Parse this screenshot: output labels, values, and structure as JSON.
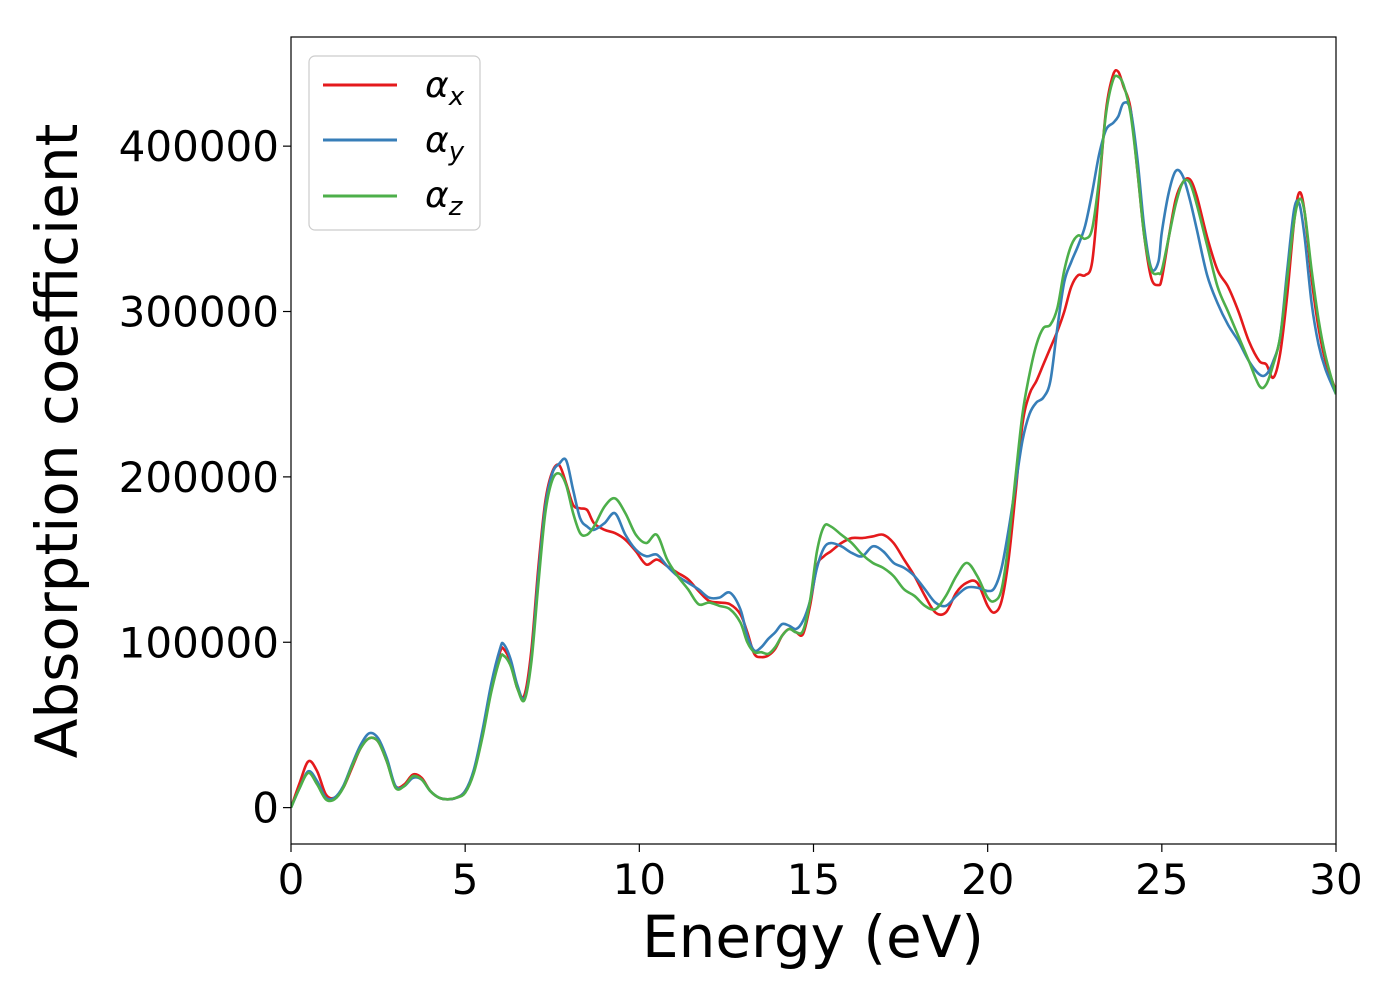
{
  "chart_data": {
    "type": "line",
    "xlabel": "Energy (eV)",
    "ylabel": "Absorption coefficient",
    "xlim": [
      0,
      30
    ],
    "ylim": [
      -22000,
      466000
    ],
    "xticks": [
      0,
      5,
      10,
      15,
      20,
      25,
      30
    ],
    "xtick_labels": [
      "0",
      "5",
      "10",
      "15",
      "20",
      "25",
      "30"
    ],
    "yticks": [
      0,
      100000,
      200000,
      300000,
      400000
    ],
    "ytick_labels": [
      "0",
      "100000",
      "200000",
      "300000",
      "400000"
    ],
    "grid": false,
    "legend_position": "top-left",
    "series": [
      {
        "name": "α",
        "subscript": "x",
        "color": "#e41a1c",
        "x": [
          0,
          0.25,
          0.5,
          0.75,
          1.0,
          1.25,
          1.5,
          1.75,
          2.0,
          2.25,
          2.5,
          2.75,
          3.0,
          3.25,
          3.5,
          3.75,
          4.0,
          4.25,
          4.5,
          4.75,
          5.0,
          5.25,
          5.5,
          5.75,
          6.0,
          6.1,
          6.3,
          6.5,
          6.7,
          6.9,
          7.1,
          7.3,
          7.5,
          7.7,
          7.9,
          8.1,
          8.3,
          8.5,
          8.7,
          9.0,
          9.3,
          9.6,
          9.9,
          10.2,
          10.5,
          10.8,
          11.1,
          11.4,
          11.7,
          12.0,
          12.3,
          12.6,
          12.9,
          13.1,
          13.3,
          13.5,
          13.7,
          13.9,
          14.1,
          14.3,
          14.5,
          14.7,
          14.9,
          15.1,
          15.3,
          15.5,
          15.8,
          16.1,
          16.4,
          16.7,
          17.0,
          17.3,
          17.6,
          17.9,
          18.2,
          18.5,
          18.8,
          19.1,
          19.4,
          19.7,
          20.0,
          20.2,
          20.4,
          20.6,
          20.8,
          21.0,
          21.2,
          21.4,
          21.6,
          21.8,
          22.0,
          22.2,
          22.4,
          22.6,
          22.8,
          23.0,
          23.2,
          23.4,
          23.6,
          23.75,
          23.9,
          24.1,
          24.3,
          24.5,
          24.7,
          24.9,
          25.0,
          25.2,
          25.4,
          25.6,
          25.8,
          26.0,
          26.3,
          26.6,
          26.9,
          27.2,
          27.5,
          27.8,
          28.0,
          28.2,
          28.4,
          28.6,
          28.8,
          28.95,
          29.1,
          29.3,
          29.5,
          29.7,
          30.0
        ],
        "y": [
          0,
          15000,
          28000,
          22000,
          8000,
          6000,
          12000,
          24000,
          36000,
          42000,
          40000,
          28000,
          13000,
          14000,
          20000,
          18000,
          10000,
          6000,
          5000,
          6000,
          10000,
          22000,
          45000,
          72000,
          94000,
          96000,
          88000,
          72000,
          68000,
          95000,
          145000,
          185000,
          203000,
          207000,
          196000,
          183000,
          181000,
          180000,
          172000,
          168000,
          166000,
          162000,
          155000,
          147000,
          150000,
          146000,
          142000,
          138000,
          131000,
          125000,
          124000,
          123000,
          117000,
          106000,
          93000,
          91000,
          92000,
          96000,
          104000,
          108000,
          106000,
          105000,
          122000,
          146000,
          152000,
          155000,
          160000,
          163000,
          163000,
          164000,
          165000,
          160000,
          150000,
          140000,
          128000,
          118000,
          118000,
          130000,
          136000,
          136000,
          122000,
          118000,
          125000,
          150000,
          190000,
          232000,
          250000,
          258000,
          268000,
          278000,
          288000,
          300000,
          315000,
          322000,
          322000,
          330000,
          375000,
          422000,
          443000,
          445000,
          436000,
          423000,
          385000,
          345000,
          320000,
          316000,
          320000,
          345000,
          368000,
          378000,
          380000,
          370000,
          345000,
          325000,
          315000,
          300000,
          282000,
          270000,
          268000,
          260000,
          275000,
          310000,
          355000,
          372000,
          360000,
          320000,
          290000,
          270000,
          252000
        ]
      },
      {
        "name": "α",
        "subscript": "y",
        "color": "#377eb8",
        "x": [
          0,
          0.25,
          0.5,
          0.75,
          1.0,
          1.25,
          1.5,
          1.75,
          2.0,
          2.25,
          2.5,
          2.75,
          3.0,
          3.25,
          3.5,
          3.75,
          4.0,
          4.25,
          4.5,
          4.75,
          5.0,
          5.25,
          5.5,
          5.75,
          6.0,
          6.1,
          6.3,
          6.5,
          6.7,
          6.9,
          7.1,
          7.3,
          7.5,
          7.7,
          7.9,
          8.1,
          8.3,
          8.5,
          8.7,
          9.0,
          9.3,
          9.6,
          9.9,
          10.2,
          10.5,
          10.8,
          11.1,
          11.4,
          11.7,
          12.0,
          12.3,
          12.6,
          12.9,
          13.1,
          13.3,
          13.5,
          13.7,
          13.9,
          14.1,
          14.3,
          14.5,
          14.7,
          14.9,
          15.1,
          15.3,
          15.5,
          15.8,
          16.1,
          16.4,
          16.7,
          17.0,
          17.3,
          17.6,
          17.9,
          18.2,
          18.5,
          18.8,
          19.1,
          19.4,
          19.7,
          20.0,
          20.2,
          20.4,
          20.6,
          20.8,
          21.0,
          21.2,
          21.4,
          21.6,
          21.8,
          22.0,
          22.2,
          22.4,
          22.6,
          22.8,
          23.0,
          23.2,
          23.4,
          23.6,
          23.75,
          23.9,
          24.1,
          24.3,
          24.5,
          24.7,
          24.9,
          25.0,
          25.2,
          25.4,
          25.6,
          25.8,
          26.0,
          26.3,
          26.6,
          26.9,
          27.2,
          27.5,
          27.8,
          28.0,
          28.2,
          28.4,
          28.6,
          28.8,
          28.95,
          29.1,
          29.3,
          29.5,
          29.7,
          30.0
        ],
        "y": [
          0,
          12000,
          22000,
          16000,
          6000,
          6000,
          13000,
          26000,
          38000,
          45000,
          42000,
          30000,
          13000,
          13000,
          18000,
          17000,
          10000,
          6000,
          5000,
          6000,
          10000,
          23000,
          47000,
          75000,
          96000,
          99000,
          90000,
          74000,
          66000,
          90000,
          140000,
          182000,
          202000,
          208000,
          210000,
          192000,
          175000,
          170000,
          168000,
          172000,
          178000,
          165000,
          156000,
          152000,
          153000,
          146000,
          140000,
          136000,
          132000,
          127000,
          127000,
          130000,
          120000,
          104000,
          95000,
          97000,
          102000,
          106000,
          111000,
          110000,
          108000,
          113000,
          125000,
          145000,
          157000,
          160000,
          158000,
          154000,
          152000,
          158000,
          155000,
          148000,
          145000,
          140000,
          132000,
          124000,
          122000,
          128000,
          133000,
          133000,
          131000,
          133000,
          145000,
          168000,
          195000,
          222000,
          238000,
          245000,
          248000,
          258000,
          290000,
          318000,
          330000,
          340000,
          352000,
          372000,
          395000,
          410000,
          414000,
          418000,
          426000,
          422000,
          392000,
          350000,
          326000,
          330000,
          348000,
          372000,
          385000,
          382000,
          368000,
          350000,
          322000,
          305000,
          292000,
          282000,
          270000,
          262000,
          262000,
          270000,
          285000,
          325000,
          362000,
          365000,
          345000,
          305000,
          280000,
          265000,
          250000
        ]
      },
      {
        "name": "α",
        "subscript": "z",
        "color": "#4daf4a",
        "x": [
          0,
          0.25,
          0.5,
          0.75,
          1.0,
          1.25,
          1.5,
          1.75,
          2.0,
          2.25,
          2.5,
          2.75,
          3.0,
          3.25,
          3.5,
          3.75,
          4.0,
          4.25,
          4.5,
          4.75,
          5.0,
          5.25,
          5.5,
          5.75,
          6.0,
          6.1,
          6.3,
          6.5,
          6.7,
          6.9,
          7.1,
          7.3,
          7.5,
          7.7,
          7.9,
          8.1,
          8.3,
          8.5,
          8.7,
          9.0,
          9.3,
          9.6,
          9.9,
          10.2,
          10.5,
          10.8,
          11.1,
          11.4,
          11.7,
          12.0,
          12.3,
          12.6,
          12.9,
          13.1,
          13.3,
          13.5,
          13.7,
          13.9,
          14.1,
          14.3,
          14.5,
          14.7,
          14.9,
          15.1,
          15.3,
          15.5,
          15.8,
          16.1,
          16.4,
          16.7,
          17.0,
          17.3,
          17.6,
          17.9,
          18.2,
          18.5,
          18.8,
          19.1,
          19.4,
          19.7,
          20.0,
          20.2,
          20.4,
          20.6,
          20.8,
          21.0,
          21.2,
          21.4,
          21.6,
          21.8,
          22.0,
          22.2,
          22.4,
          22.6,
          22.8,
          23.0,
          23.2,
          23.4,
          23.6,
          23.75,
          23.9,
          24.1,
          24.3,
          24.5,
          24.7,
          24.9,
          25.0,
          25.2,
          25.4,
          25.6,
          25.8,
          26.0,
          26.3,
          26.6,
          26.9,
          27.2,
          27.5,
          27.8,
          28.0,
          28.2,
          28.4,
          28.6,
          28.8,
          28.95,
          29.1,
          29.3,
          29.5,
          29.7,
          30.0
        ],
        "y": [
          0,
          12000,
          21000,
          14000,
          5000,
          5000,
          12000,
          25000,
          36000,
          42000,
          40000,
          28000,
          12000,
          13000,
          19000,
          17000,
          10000,
          6000,
          5000,
          6000,
          9000,
          21000,
          43000,
          70000,
          90000,
          92000,
          86000,
          72000,
          65000,
          88000,
          135000,
          178000,
          198000,
          202000,
          195000,
          178000,
          166000,
          165000,
          170000,
          182000,
          187000,
          178000,
          165000,
          160000,
          165000,
          150000,
          140000,
          132000,
          123000,
          124000,
          122000,
          120000,
          112000,
          100000,
          94000,
          94000,
          93000,
          97000,
          104000,
          108000,
          106000,
          107000,
          125000,
          155000,
          170000,
          170000,
          165000,
          160000,
          153000,
          148000,
          145000,
          140000,
          132000,
          128000,
          122000,
          120000,
          128000,
          140000,
          148000,
          140000,
          127000,
          125000,
          132000,
          160000,
          200000,
          238000,
          262000,
          280000,
          290000,
          292000,
          302000,
          325000,
          340000,
          346000,
          344000,
          350000,
          380000,
          420000,
          440000,
          442000,
          437000,
          420000,
          385000,
          345000,
          325000,
          323000,
          325000,
          345000,
          365000,
          378000,
          378000,
          365000,
          340000,
          315000,
          300000,
          285000,
          270000,
          255000,
          256000,
          268000,
          285000,
          320000,
          355000,
          368000,
          360000,
          325000,
          295000,
          273000,
          250000
        ]
      }
    ]
  }
}
